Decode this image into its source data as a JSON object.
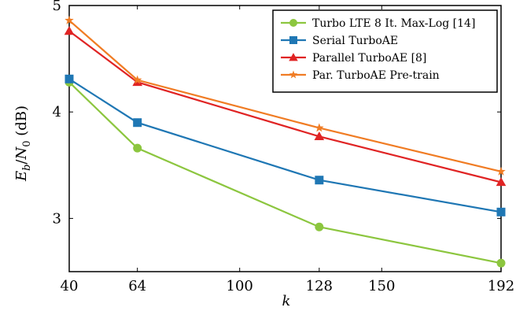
{
  "chart_data": {
    "type": "line",
    "xlabel": "k",
    "ylabel": "E_b/N_0 (dB)",
    "ylabel_parts": {
      "E": "E",
      "b": "b",
      "slash": "/",
      "N": "N",
      "zero": "0",
      "unit": " (dB)"
    },
    "x_ticks": [
      40,
      64,
      100,
      128,
      150,
      192
    ],
    "y_ticks": [
      3,
      4,
      5
    ],
    "xlim": [
      40,
      192
    ],
    "ylim": [
      2.5,
      5
    ],
    "grid": false,
    "legend_position": "top-right",
    "series": [
      {
        "name": "Turbo LTE 8 It. Max-Log [14]",
        "color": "#8cc63f",
        "marker": "circle",
        "x": [
          40,
          64,
          128,
          192
        ],
        "y": [
          4.28,
          3.66,
          2.92,
          2.58
        ]
      },
      {
        "name": "Serial TurboAE",
        "color": "#1f77b4",
        "marker": "square",
        "x": [
          40,
          64,
          128,
          192
        ],
        "y": [
          4.31,
          3.9,
          3.36,
          3.06
        ]
      },
      {
        "name": "Parallel TurboAE [8]",
        "color": "#e02424",
        "marker": "triangle",
        "x": [
          40,
          64,
          128,
          192
        ],
        "y": [
          4.76,
          4.28,
          3.77,
          3.34
        ]
      },
      {
        "name": "Par. TurboAE Pre-train",
        "color": "#f07c24",
        "marker": "star",
        "x": [
          40,
          64,
          128,
          192
        ],
        "y": [
          4.86,
          4.3,
          3.85,
          3.44
        ]
      }
    ]
  }
}
